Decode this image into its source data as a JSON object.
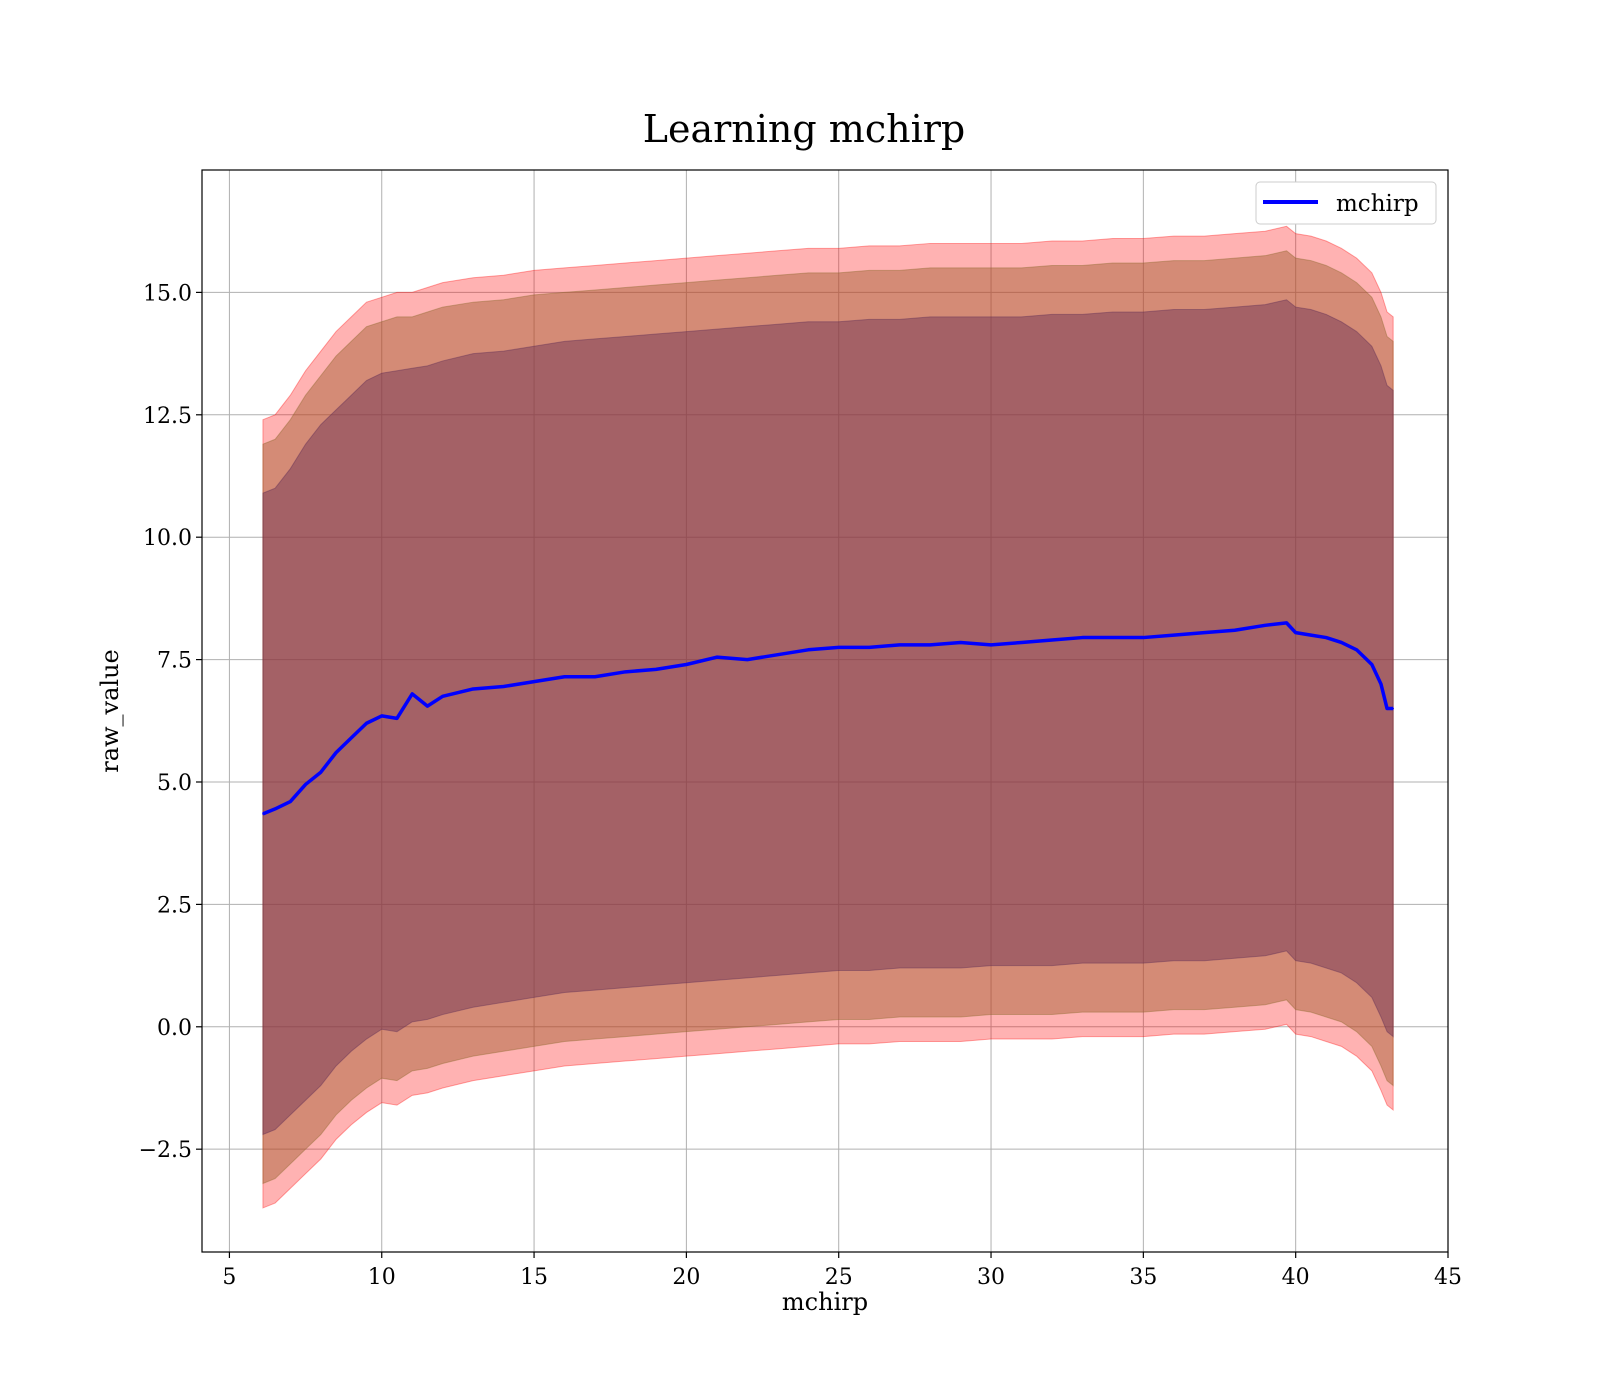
{
  "chart_data": {
    "type": "line",
    "title": "Learning mchirp",
    "xlabel": "mchirp",
    "ylabel": "raw_value",
    "xlim": [
      4.1,
      45
    ],
    "ylim": [
      -4.6,
      17.5
    ],
    "xticks": [
      5,
      10,
      15,
      20,
      25,
      30,
      35,
      40,
      45
    ],
    "xtick_labels": [
      "5",
      "10",
      "15",
      "20",
      "25",
      "30",
      "35",
      "40",
      "45"
    ],
    "yticks": [
      -2.5,
      0.0,
      2.5,
      5.0,
      7.5,
      10.0,
      12.5,
      15.0
    ],
    "ytick_labels": [
      "−2.5",
      "0.0",
      "2.5",
      "5.0",
      "7.5",
      "10.0",
      "12.5",
      "15.0"
    ],
    "grid": true,
    "legend": {
      "position": "top-right",
      "entries": [
        "mchirp"
      ]
    },
    "colors": {
      "line": "#0000ff",
      "band": "#ff0000",
      "grid": "#b0b0b0"
    },
    "series": [
      {
        "name": "mchirp",
        "x": [
          6.1,
          6.5,
          7.0,
          7.5,
          8.0,
          8.5,
          9.0,
          9.5,
          10.0,
          10.5,
          11.0,
          11.5,
          12.0,
          13.0,
          14.0,
          15.0,
          16.0,
          17.0,
          18.0,
          19.0,
          20.0,
          21.0,
          22.0,
          23.0,
          24.0,
          25.0,
          26.0,
          27.0,
          28.0,
          29.0,
          30.0,
          31.0,
          32.0,
          33.0,
          34.0,
          35.0,
          36.0,
          37.0,
          38.0,
          39.0,
          39.7,
          40.0,
          40.5,
          41.0,
          41.5,
          42.0,
          42.5,
          42.8,
          43.0,
          43.2
        ],
        "y": [
          4.35,
          4.45,
          4.6,
          4.95,
          5.2,
          5.6,
          5.9,
          6.2,
          6.35,
          6.3,
          6.8,
          6.55,
          6.75,
          6.9,
          6.95,
          7.05,
          7.15,
          7.15,
          7.25,
          7.3,
          7.4,
          7.55,
          7.5,
          7.6,
          7.7,
          7.75,
          7.75,
          7.8,
          7.8,
          7.85,
          7.8,
          7.85,
          7.9,
          7.95,
          7.95,
          7.95,
          8.0,
          8.05,
          8.1,
          8.2,
          8.25,
          8.05,
          8.0,
          7.95,
          7.85,
          7.7,
          7.4,
          7.0,
          6.5,
          6.5
        ],
        "band_1sigma_upper": [
          10.9,
          11.0,
          11.4,
          11.9,
          12.3,
          12.6,
          12.9,
          13.2,
          13.35,
          13.4,
          13.45,
          13.5,
          13.6,
          13.75,
          13.8,
          13.9,
          14.0,
          14.05,
          14.1,
          14.15,
          14.2,
          14.25,
          14.3,
          14.35,
          14.4,
          14.4,
          14.45,
          14.45,
          14.5,
          14.5,
          14.5,
          14.5,
          14.55,
          14.55,
          14.6,
          14.6,
          14.65,
          14.65,
          14.7,
          14.75,
          14.85,
          14.7,
          14.65,
          14.55,
          14.4,
          14.2,
          13.9,
          13.5,
          13.1,
          13.0
        ],
        "band_1sigma_lower": [
          -2.2,
          -2.1,
          -1.8,
          -1.5,
          -1.2,
          -0.8,
          -0.5,
          -0.25,
          -0.05,
          -0.1,
          0.1,
          0.15,
          0.25,
          0.4,
          0.5,
          0.6,
          0.7,
          0.75,
          0.8,
          0.85,
          0.9,
          0.95,
          1.0,
          1.05,
          1.1,
          1.15,
          1.15,
          1.2,
          1.2,
          1.2,
          1.25,
          1.25,
          1.25,
          1.3,
          1.3,
          1.3,
          1.35,
          1.35,
          1.4,
          1.45,
          1.55,
          1.35,
          1.3,
          1.2,
          1.1,
          0.9,
          0.6,
          0.2,
          -0.1,
          -0.2
        ],
        "band_2sigma_upper": [
          11.9,
          12.0,
          12.4,
          12.9,
          13.3,
          13.7,
          14.0,
          14.3,
          14.4,
          14.5,
          14.5,
          14.6,
          14.7,
          14.8,
          14.85,
          14.95,
          15.0,
          15.05,
          15.1,
          15.15,
          15.2,
          15.25,
          15.3,
          15.35,
          15.4,
          15.4,
          15.45,
          15.45,
          15.5,
          15.5,
          15.5,
          15.5,
          15.55,
          15.55,
          15.6,
          15.6,
          15.65,
          15.65,
          15.7,
          15.75,
          15.85,
          15.7,
          15.65,
          15.55,
          15.4,
          15.2,
          14.9,
          14.5,
          14.1,
          14.0
        ],
        "band_2sigma_lower": [
          -3.2,
          -3.1,
          -2.8,
          -2.5,
          -2.2,
          -1.8,
          -1.5,
          -1.25,
          -1.05,
          -1.1,
          -0.9,
          -0.85,
          -0.75,
          -0.6,
          -0.5,
          -0.4,
          -0.3,
          -0.25,
          -0.2,
          -0.15,
          -0.1,
          -0.05,
          0.0,
          0.05,
          0.1,
          0.15,
          0.15,
          0.2,
          0.2,
          0.2,
          0.25,
          0.25,
          0.25,
          0.3,
          0.3,
          0.3,
          0.35,
          0.35,
          0.4,
          0.45,
          0.55,
          0.35,
          0.3,
          0.2,
          0.1,
          -0.1,
          -0.4,
          -0.8,
          -1.1,
          -1.2
        ],
        "band_3sigma_upper": [
          12.4,
          12.5,
          12.9,
          13.4,
          13.8,
          14.2,
          14.5,
          14.8,
          14.9,
          15.0,
          15.0,
          15.1,
          15.2,
          15.3,
          15.35,
          15.45,
          15.5,
          15.55,
          15.6,
          15.65,
          15.7,
          15.75,
          15.8,
          15.85,
          15.9,
          15.9,
          15.95,
          15.95,
          16.0,
          16.0,
          16.0,
          16.0,
          16.05,
          16.05,
          16.1,
          16.1,
          16.15,
          16.15,
          16.2,
          16.25,
          16.35,
          16.2,
          16.15,
          16.05,
          15.9,
          15.7,
          15.4,
          15.0,
          14.6,
          14.5
        ],
        "band_3sigma_lower": [
          -3.7,
          -3.6,
          -3.3,
          -3.0,
          -2.7,
          -2.3,
          -2.0,
          -1.75,
          -1.55,
          -1.6,
          -1.4,
          -1.35,
          -1.25,
          -1.1,
          -1.0,
          -0.9,
          -0.8,
          -0.75,
          -0.7,
          -0.65,
          -0.6,
          -0.55,
          -0.5,
          -0.45,
          -0.4,
          -0.35,
          -0.35,
          -0.3,
          -0.3,
          -0.3,
          -0.25,
          -0.25,
          -0.25,
          -0.2,
          -0.2,
          -0.2,
          -0.15,
          -0.15,
          -0.1,
          -0.05,
          0.05,
          -0.15,
          -0.2,
          -0.3,
          -0.4,
          -0.6,
          -0.9,
          -1.3,
          -1.6,
          -1.7
        ]
      }
    ]
  }
}
